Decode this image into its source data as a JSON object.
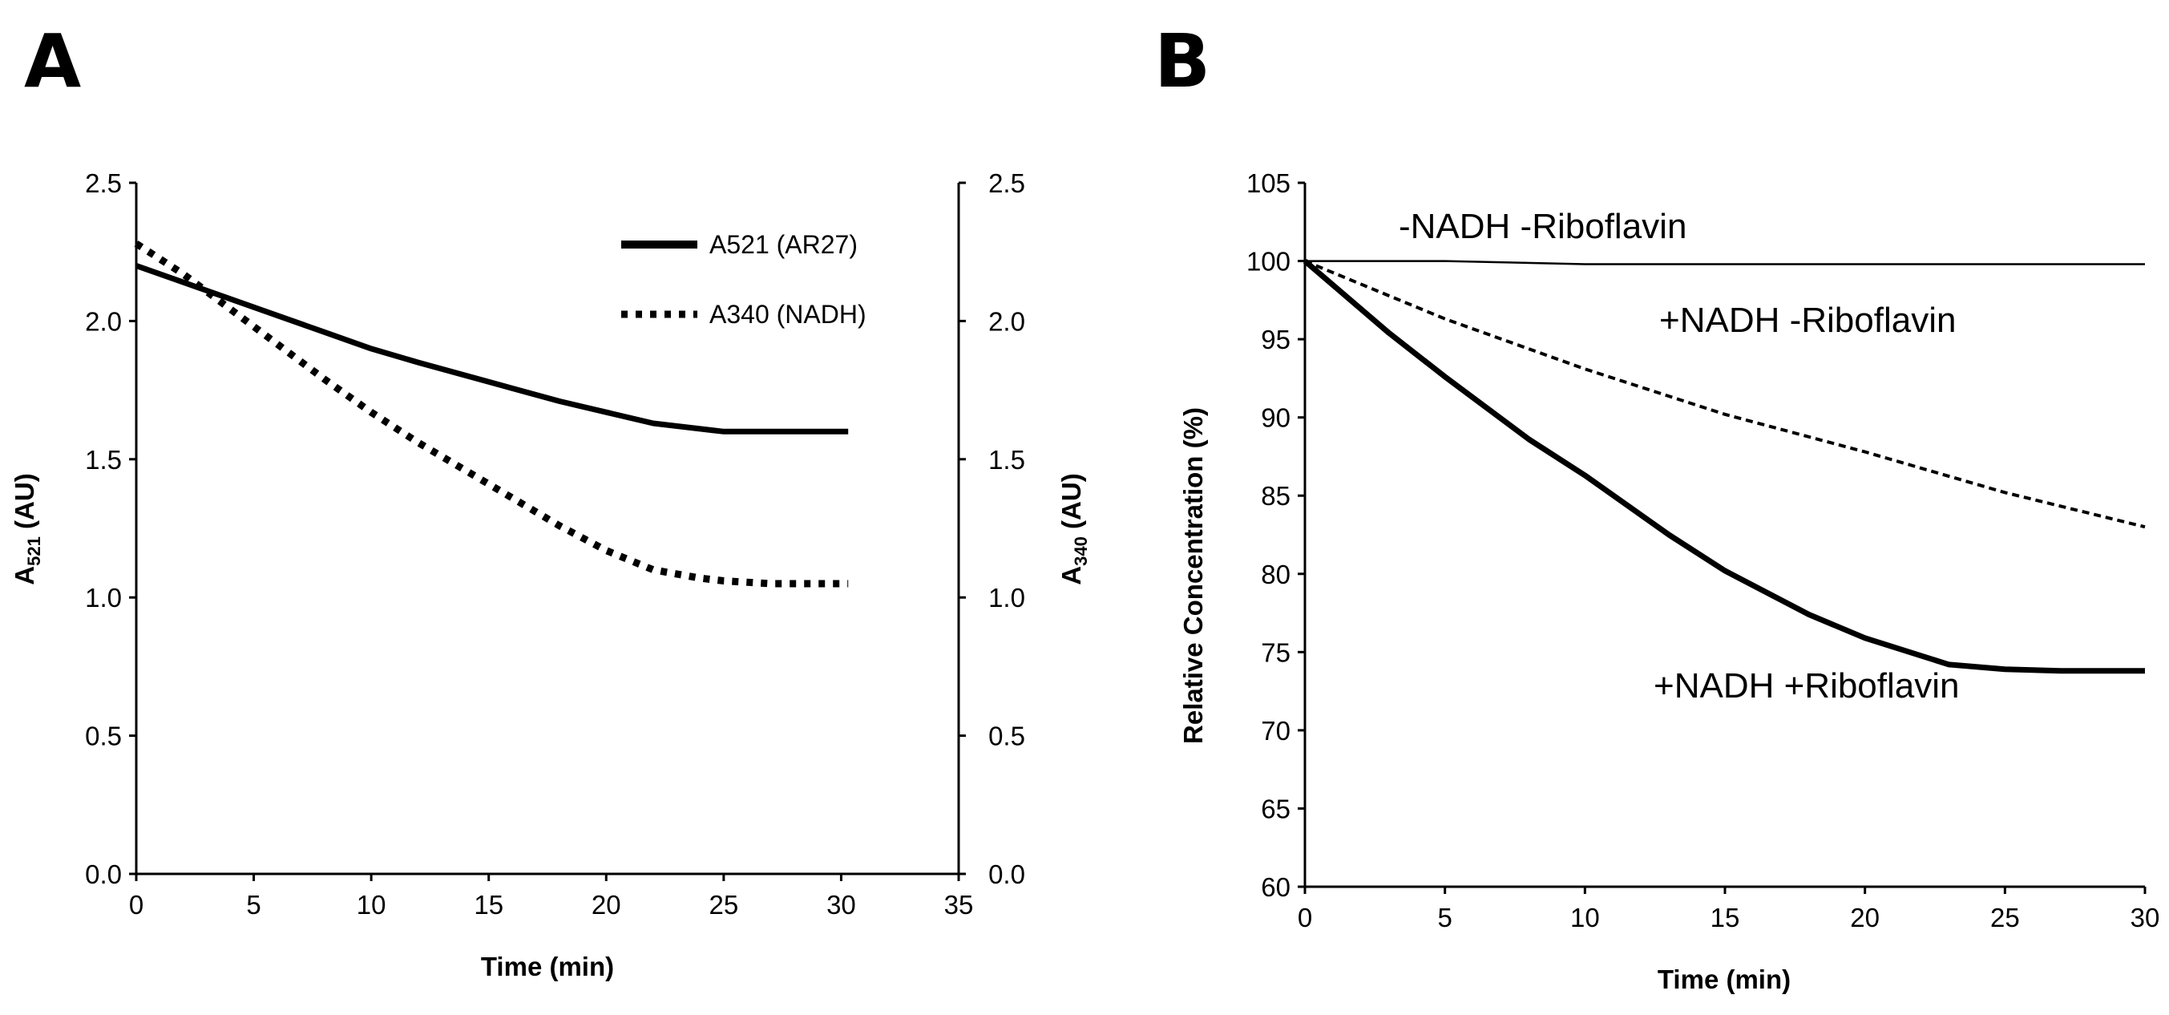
{
  "panels": [
    {
      "letter": "A",
      "chart_data": {
        "type": "line",
        "xlabel": "Time (min)",
        "ylabel_left": {
          "main": "A",
          "sub": "521",
          "suffix": " (AU)"
        },
        "ylabel_right": {
          "main": "A",
          "sub": "340",
          "suffix": " (AU)"
        },
        "xlim": [
          0,
          35
        ],
        "ylim": [
          0,
          2.5
        ],
        "x_ticks": [
          "0",
          "5",
          "10",
          "15",
          "20",
          "25",
          "30",
          "35"
        ],
        "y_ticks": [
          "0.0",
          "0.5",
          "1.0",
          "1.5",
          "2.0",
          "2.5"
        ],
        "legend_position": "top-right",
        "series": [
          {
            "name": "A521 (AR27)",
            "style": "solid-thick",
            "x": [
              0,
              2,
              5,
              8,
              10,
              12,
              15,
              18,
              20,
              22,
              24,
              25,
              27,
              29,
              30.3
            ],
            "y": [
              2.2,
              2.14,
              2.05,
              1.96,
              1.9,
              1.85,
              1.78,
              1.71,
              1.67,
              1.63,
              1.61,
              1.6,
              1.6,
              1.6,
              1.6
            ]
          },
          {
            "name": "A340 (NADH)",
            "style": "dotted-thick",
            "x": [
              0,
              2,
              5,
              8,
              10,
              12,
              15,
              18,
              20,
              22,
              24,
              25,
              27,
              29,
              30.3
            ],
            "y": [
              2.28,
              2.17,
              1.98,
              1.79,
              1.67,
              1.56,
              1.41,
              1.26,
              1.17,
              1.1,
              1.07,
              1.06,
              1.05,
              1.05,
              1.05
            ]
          }
        ]
      }
    },
    {
      "letter": "B",
      "chart_data": {
        "type": "line",
        "xlabel": "Time (min)",
        "ylabel": "Relative Concentration (%)",
        "xlim": [
          0,
          30
        ],
        "ylim": [
          60,
          105
        ],
        "x_ticks": [
          "0",
          "5",
          "10",
          "15",
          "20",
          "25",
          "30"
        ],
        "y_ticks": [
          "60",
          "65",
          "70",
          "75",
          "80",
          "85",
          "90",
          "95",
          "100",
          "105"
        ],
        "series": [
          {
            "name": "-NADH -Riboflavin",
            "style": "solid-thin",
            "x": [
              0,
              5,
              10,
              15,
              20,
              25,
              30
            ],
            "y": [
              100,
              100,
              99.8,
              99.8,
              99.8,
              99.8,
              99.8
            ]
          },
          {
            "name": "+NADH -Riboflavin",
            "style": "dashed",
            "x": [
              0,
              5,
              10,
              15,
              20,
              25,
              30
            ],
            "y": [
              100,
              96.3,
              93.1,
              90.2,
              87.8,
              85.2,
              83
            ]
          },
          {
            "name": "+NADH +Riboflavin",
            "style": "solid-thick",
            "x": [
              0,
              3,
              5,
              8,
              10,
              13,
              15,
              18,
              20,
              23,
              25,
              27,
              30
            ],
            "y": [
              100,
              95.4,
              92.6,
              88.6,
              86.3,
              82.5,
              80.2,
              77.4,
              75.9,
              74.2,
              73.9,
              73.8,
              73.8
            ]
          }
        ]
      }
    }
  ]
}
